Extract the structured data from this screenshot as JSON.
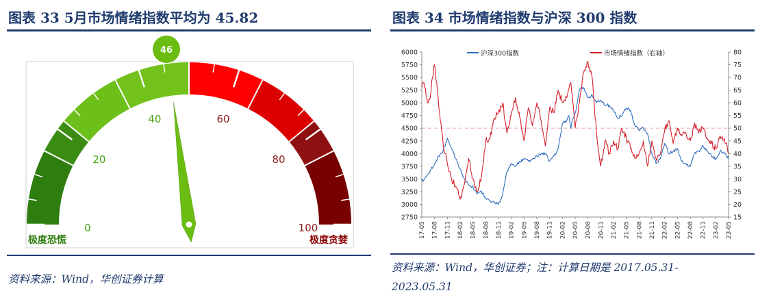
{
  "left": {
    "title": "图表 33   5月市场情绪指数平均为 45.82",
    "source": "资料来源：Wind，华创证券计算",
    "chart_data": {
      "type": "gauge",
      "value": 46,
      "value_label": "46",
      "range": [
        0,
        100
      ],
      "tick_labels": [
        "0",
        "20",
        "40",
        "60",
        "80",
        "100"
      ],
      "left_end_label": "极度恐慌",
      "right_end_label": "极度贪婪",
      "bands": [
        {
          "from": 0,
          "to": 15,
          "color": "#2e7d0f"
        },
        {
          "from": 15,
          "to": 22,
          "color": "#3a8c12"
        },
        {
          "from": 22,
          "to": 35,
          "color": "#6dbf1a"
        },
        {
          "from": 35,
          "to": 50,
          "color": "#72c21b"
        },
        {
          "from": 50,
          "to": 65,
          "color": "#ff0000"
        },
        {
          "from": 65,
          "to": 78,
          "color": "#dd0000"
        },
        {
          "from": 78,
          "to": 85,
          "color": "#8e1010"
        },
        {
          "from": 85,
          "to": 100,
          "color": "#780000"
        }
      ]
    }
  },
  "right": {
    "title": "图表 34   市场情绪指数与沪深 300 指数",
    "source_line1": "资料来源：Wind，华创证券；注：计算日期是 2017.05.31-",
    "source_line2": "2023.05.31",
    "chart_data": {
      "type": "line",
      "x_ticks": [
        "17-05",
        "17-08",
        "17-11",
        "18-02",
        "18-05",
        "18-08",
        "18-11",
        "19-02",
        "19-05",
        "19-08",
        "19-11",
        "20-02",
        "20-05",
        "20-08",
        "20-11",
        "21-02",
        "21-05",
        "21-08",
        "21-11",
        "22-02",
        "22-05",
        "22-08",
        "22-11",
        "23-02",
        "23-05"
      ],
      "y_left": {
        "min": 2750,
        "max": 6000,
        "ticks": [
          "2750",
          "3000",
          "3250",
          "3500",
          "3750",
          "4000",
          "4250",
          "4500",
          "4750",
          "5000",
          "5250",
          "5500",
          "5750",
          "6000"
        ]
      },
      "y_right": {
        "min": 15,
        "max": 80,
        "ticks": [
          "15",
          "20",
          "25",
          "30",
          "35",
          "40",
          "45",
          "50",
          "55",
          "60",
          "65",
          "70",
          "75",
          "80"
        ]
      },
      "reference_line": {
        "axis": "right",
        "value": 50,
        "style": "dashed",
        "color": "#f0b8b8"
      },
      "series": [
        {
          "name": "沪深300指数",
          "axis": "left",
          "color": "#2f6dc0",
          "x": [
            0,
            3,
            6,
            8,
            10,
            11,
            12,
            14,
            16,
            18,
            20,
            22,
            24,
            26,
            28,
            30,
            33,
            36,
            38,
            40,
            42,
            44,
            46,
            48,
            50,
            52,
            54,
            56,
            58,
            60,
            62,
            64,
            66,
            68,
            69,
            70,
            71,
            72,
            73,
            74,
            76,
            78,
            80,
            82,
            84,
            86,
            88,
            90,
            92,
            94,
            96,
            98,
            100,
            102,
            104,
            106,
            108,
            110,
            112,
            114,
            116,
            118,
            120,
            122,
            124,
            126,
            128,
            130,
            132,
            134,
            136,
            138,
            140,
            142,
            144
          ],
          "values": [
            3450,
            3600,
            3800,
            3950,
            4050,
            4150,
            4300,
            4100,
            3900,
            3700,
            3500,
            3380,
            3350,
            3200,
            3250,
            3120,
            3050,
            3000,
            3200,
            3650,
            3800,
            3750,
            3850,
            3900,
            3850,
            3900,
            3950,
            4000,
            4000,
            3850,
            3950,
            4100,
            4600,
            4650,
            4750,
            4500,
            4700,
            4800,
            5000,
            5250,
            5300,
            5100,
            5150,
            5000,
            5050,
            4950,
            4950,
            4850,
            4700,
            4750,
            4900,
            4850,
            4550,
            4450,
            4500,
            4400,
            4000,
            3800,
            3900,
            4200,
            4000,
            4050,
            4100,
            3850,
            3800,
            3750,
            4000,
            4050,
            4150,
            4050,
            3950,
            3900,
            4050,
            4000,
            3900
          ]
        },
        {
          "name": "市场情绪指数（右轴）",
          "axis": "right",
          "color": "#d4202c",
          "x": [
            0,
            1,
            2,
            3,
            4,
            5,
            6,
            7,
            8,
            9,
            10,
            11,
            12,
            13,
            14,
            16,
            18,
            20,
            22,
            24,
            26,
            28,
            30,
            32,
            34,
            36,
            38,
            40,
            42,
            44,
            46,
            48,
            50,
            52,
            54,
            56,
            58,
            60,
            62,
            64,
            66,
            68,
            70,
            72,
            74,
            76,
            78,
            80,
            82,
            84,
            86,
            88,
            90,
            92,
            94,
            96,
            98,
            100,
            102,
            104,
            106,
            108,
            110,
            112,
            114,
            116,
            118,
            120,
            122,
            124,
            126,
            128,
            130,
            132,
            134,
            136,
            138,
            140,
            142,
            144
          ],
          "values": [
            66,
            68,
            63,
            60,
            62,
            70,
            75,
            68,
            58,
            52,
            44,
            40,
            36,
            33,
            30,
            27,
            22,
            28,
            38,
            30,
            25,
            31,
            45,
            46,
            54,
            56,
            60,
            48,
            55,
            62,
            54,
            45,
            58,
            51,
            60,
            53,
            43,
            58,
            56,
            65,
            60,
            62,
            68,
            50,
            60,
            72,
            76,
            70,
            48,
            35,
            45,
            40,
            45,
            42,
            50,
            46,
            42,
            38,
            40,
            45,
            35,
            45,
            38,
            40,
            49,
            53,
            44,
            50,
            47,
            48,
            45,
            52,
            48,
            50,
            46,
            44,
            42,
            47,
            46,
            40
          ]
        }
      ],
      "x_count": 144
    }
  }
}
